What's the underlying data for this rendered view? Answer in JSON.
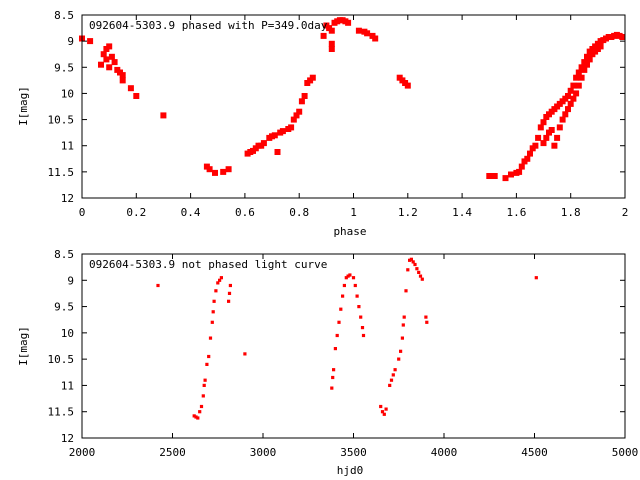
{
  "chart_data": [
    {
      "type": "scatter",
      "title": "092604-5303.9 phased with P=349.0day",
      "xlabel": "phase",
      "ylabel": "I[mag]",
      "xlim": [
        0,
        2
      ],
      "ylim": [
        8.5,
        12
      ],
      "y_inverted": true,
      "xticks": [
        "0",
        "0.2",
        "0.4",
        "0.6",
        "0.8",
        "1",
        "1.2",
        "1.4",
        "1.6",
        "1.8",
        "2"
      ],
      "yticks": [
        "8.5",
        "9",
        "9.5",
        "10",
        "10.5",
        "11",
        "11.5",
        "12"
      ],
      "marker_color": "#ff0000",
      "points": [
        [
          0.0,
          8.95
        ],
        [
          0.03,
          9.0
        ],
        [
          0.07,
          9.45
        ],
        [
          0.08,
          9.25
        ],
        [
          0.09,
          9.15
        ],
        [
          0.09,
          9.35
        ],
        [
          0.1,
          9.1
        ],
        [
          0.1,
          9.5
        ],
        [
          0.11,
          9.3
        ],
        [
          0.12,
          9.4
        ],
        [
          0.13,
          9.55
        ],
        [
          0.14,
          9.6
        ],
        [
          0.15,
          9.65
        ],
        [
          0.15,
          9.75
        ],
        [
          0.18,
          9.9
        ],
        [
          0.2,
          10.05
        ],
        [
          0.3,
          10.42
        ],
        [
          0.46,
          11.4
        ],
        [
          0.47,
          11.45
        ],
        [
          0.49,
          11.52
        ],
        [
          0.52,
          11.5
        ],
        [
          0.54,
          11.45
        ],
        [
          0.61,
          11.15
        ],
        [
          0.62,
          11.12
        ],
        [
          0.63,
          11.1
        ],
        [
          0.64,
          11.05
        ],
        [
          0.65,
          11.0
        ],
        [
          0.66,
          11.0
        ],
        [
          0.67,
          10.95
        ],
        [
          0.69,
          10.85
        ],
        [
          0.7,
          10.82
        ],
        [
          0.71,
          10.8
        ],
        [
          0.72,
          11.12
        ],
        [
          0.73,
          10.75
        ],
        [
          0.74,
          10.72
        ],
        [
          0.76,
          10.68
        ],
        [
          0.77,
          10.65
        ],
        [
          0.78,
          10.5
        ],
        [
          0.79,
          10.42
        ],
        [
          0.8,
          10.35
        ],
        [
          0.81,
          10.15
        ],
        [
          0.82,
          10.05
        ],
        [
          0.83,
          9.8
        ],
        [
          0.84,
          9.75
        ],
        [
          0.85,
          9.7
        ],
        [
          0.89,
          8.9
        ],
        [
          0.9,
          8.7
        ],
        [
          0.91,
          8.75
        ],
        [
          0.92,
          8.8
        ],
        [
          0.92,
          9.05
        ],
        [
          0.92,
          9.15
        ],
        [
          0.93,
          8.65
        ],
        [
          0.94,
          8.62
        ],
        [
          0.95,
          8.6
        ],
        [
          0.96,
          8.6
        ],
        [
          0.97,
          8.62
        ],
        [
          0.98,
          8.65
        ],
        [
          1.02,
          8.8
        ],
        [
          1.04,
          8.82
        ],
        [
          1.05,
          8.85
        ],
        [
          1.07,
          8.9
        ],
        [
          1.08,
          8.95
        ],
        [
          1.17,
          9.7
        ],
        [
          1.18,
          9.75
        ],
        [
          1.19,
          9.8
        ],
        [
          1.2,
          9.85
        ],
        [
          1.5,
          11.58
        ],
        [
          1.52,
          11.58
        ],
        [
          1.56,
          11.62
        ],
        [
          1.58,
          11.55
        ],
        [
          1.6,
          11.52
        ],
        [
          1.61,
          11.5
        ],
        [
          1.62,
          11.4
        ],
        [
          1.63,
          11.3
        ],
        [
          1.64,
          11.25
        ],
        [
          1.65,
          11.15
        ],
        [
          1.66,
          11.05
        ],
        [
          1.67,
          11.0
        ],
        [
          1.68,
          10.85
        ],
        [
          1.69,
          10.65
        ],
        [
          1.7,
          10.55
        ],
        [
          1.7,
          10.95
        ],
        [
          1.71,
          10.45
        ],
        [
          1.71,
          10.85
        ],
        [
          1.72,
          10.4
        ],
        [
          1.72,
          10.75
        ],
        [
          1.73,
          10.35
        ],
        [
          1.73,
          10.7
        ],
        [
          1.74,
          10.3
        ],
        [
          1.74,
          11.0
        ],
        [
          1.75,
          10.25
        ],
        [
          1.75,
          10.85
        ],
        [
          1.76,
          10.2
        ],
        [
          1.76,
          10.65
        ],
        [
          1.77,
          10.15
        ],
        [
          1.77,
          10.5
        ],
        [
          1.78,
          10.1
        ],
        [
          1.78,
          10.4
        ],
        [
          1.79,
          10.05
        ],
        [
          1.79,
          10.3
        ],
        [
          1.8,
          9.95
        ],
        [
          1.8,
          10.2
        ],
        [
          1.81,
          9.85
        ],
        [
          1.81,
          10.1
        ],
        [
          1.82,
          9.7
        ],
        [
          1.82,
          10.0
        ],
        [
          1.83,
          9.6
        ],
        [
          1.83,
          9.85
        ],
        [
          1.84,
          9.5
        ],
        [
          1.84,
          9.7
        ],
        [
          1.85,
          9.4
        ],
        [
          1.85,
          9.55
        ],
        [
          1.86,
          9.3
        ],
        [
          1.86,
          9.45
        ],
        [
          1.87,
          9.2
        ],
        [
          1.87,
          9.35
        ],
        [
          1.88,
          9.15
        ],
        [
          1.88,
          9.25
        ],
        [
          1.89,
          9.1
        ],
        [
          1.89,
          9.2
        ],
        [
          1.9,
          9.05
        ],
        [
          1.9,
          9.15
        ],
        [
          1.91,
          9.0
        ],
        [
          1.91,
          9.1
        ],
        [
          1.92,
          8.98
        ],
        [
          1.93,
          8.95
        ],
        [
          1.94,
          8.92
        ],
        [
          1.95,
          8.92
        ],
        [
          1.96,
          8.9
        ],
        [
          1.97,
          8.88
        ],
        [
          1.98,
          8.9
        ],
        [
          1.99,
          8.92
        ]
      ]
    },
    {
      "type": "scatter",
      "title": "092604-5303.9 not phased light curve",
      "xlabel": "hjd0",
      "ylabel": "I[mag]",
      "xlim": [
        2000,
        5000
      ],
      "ylim": [
        8.5,
        12
      ],
      "y_inverted": true,
      "xticks": [
        "2000",
        "2500",
        "3000",
        "3500",
        "4000",
        "4500",
        "5000"
      ],
      "yticks": [
        "8.5",
        "9",
        "9.5",
        "10",
        "10.5",
        "11",
        "11.5",
        "12"
      ],
      "marker_color": "#ff0000",
      "points": [
        [
          2420,
          9.1
        ],
        [
          2620,
          11.58
        ],
        [
          2630,
          11.6
        ],
        [
          2640,
          11.62
        ],
        [
          2650,
          11.5
        ],
        [
          2660,
          11.4
        ],
        [
          2670,
          11.2
        ],
        [
          2675,
          11.0
        ],
        [
          2680,
          10.9
        ],
        [
          2690,
          10.6
        ],
        [
          2700,
          10.45
        ],
        [
          2710,
          10.1
        ],
        [
          2720,
          9.8
        ],
        [
          2725,
          9.6
        ],
        [
          2730,
          9.4
        ],
        [
          2740,
          9.2
        ],
        [
          2750,
          9.05
        ],
        [
          2760,
          9.0
        ],
        [
          2770,
          8.95
        ],
        [
          2810,
          9.4
        ],
        [
          2815,
          9.25
        ],
        [
          2820,
          9.1
        ],
        [
          2900,
          10.4
        ],
        [
          3380,
          11.05
        ],
        [
          3385,
          10.85
        ],
        [
          3390,
          10.7
        ],
        [
          3400,
          10.3
        ],
        [
          3410,
          10.05
        ],
        [
          3420,
          9.8
        ],
        [
          3430,
          9.55
        ],
        [
          3440,
          9.3
        ],
        [
          3450,
          9.1
        ],
        [
          3460,
          8.95
        ],
        [
          3470,
          8.92
        ],
        [
          3480,
          8.9
        ],
        [
          3500,
          8.95
        ],
        [
          3510,
          9.1
        ],
        [
          3520,
          9.3
        ],
        [
          3530,
          9.5
        ],
        [
          3540,
          9.7
        ],
        [
          3550,
          9.9
        ],
        [
          3555,
          10.05
        ],
        [
          3650,
          11.4
        ],
        [
          3660,
          11.5
        ],
        [
          3670,
          11.55
        ],
        [
          3680,
          11.45
        ],
        [
          3700,
          11.0
        ],
        [
          3710,
          10.9
        ],
        [
          3720,
          10.8
        ],
        [
          3730,
          10.7
        ],
        [
          3750,
          10.5
        ],
        [
          3760,
          10.35
        ],
        [
          3770,
          10.1
        ],
        [
          3775,
          9.85
        ],
        [
          3780,
          9.7
        ],
        [
          3790,
          9.2
        ],
        [
          3800,
          8.8
        ],
        [
          3810,
          8.62
        ],
        [
          3820,
          8.6
        ],
        [
          3830,
          8.65
        ],
        [
          3840,
          8.7
        ],
        [
          3850,
          8.78
        ],
        [
          3860,
          8.85
        ],
        [
          3870,
          8.92
        ],
        [
          3880,
          8.98
        ],
        [
          3900,
          9.7
        ],
        [
          3905,
          9.8
        ],
        [
          4510,
          8.95
        ]
      ]
    }
  ]
}
